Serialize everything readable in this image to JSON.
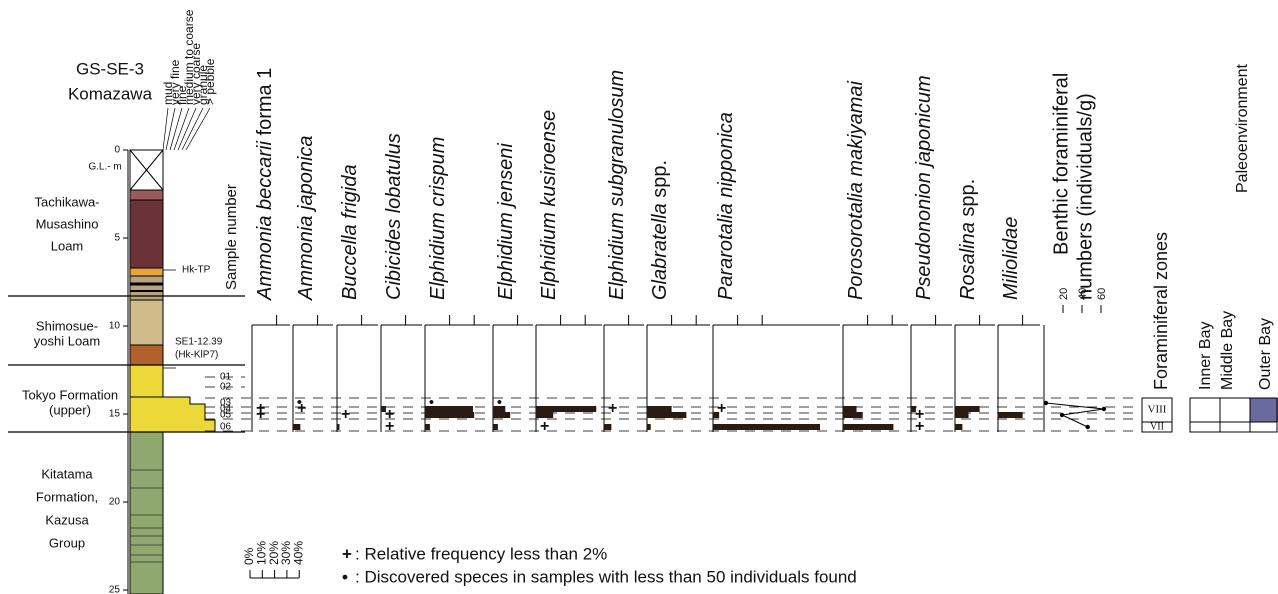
{
  "header": {
    "title": "GS-SE-3",
    "subtitle": "Komazawa",
    "depth_label": "G.L.- m",
    "sample_label": "Sample number"
  },
  "grain_sizes": [
    "mud",
    "very fine",
    "fine",
    "medium to coarse",
    "very coarse",
    "granule",
    "> pebble"
  ],
  "depth_ticks": [
    0,
    5,
    10,
    15,
    20,
    25
  ],
  "units": [
    {
      "lines": [
        "Tachikawa-",
        "Musashino",
        "Loam"
      ]
    },
    {
      "lines": [
        "Shimosue-",
        "yoshi Loam"
      ]
    },
    {
      "lines": [
        "Tokyo Formation",
        "(upper)"
      ]
    },
    {
      "lines": [
        "Kitatama",
        "Formation,",
        "Kazusa",
        "Group"
      ]
    }
  ],
  "tephra": [
    {
      "label": "Hk-TP"
    },
    {
      "label": "SE1-12.39",
      "label2": "(Hk-KlP7)"
    }
  ],
  "samples": [
    "01",
    "02",
    "03",
    "04",
    "05",
    "06"
  ],
  "species": [
    {
      "name": "Ammonia beccarii",
      "suffix": "forma 1",
      "values": [
        null,
        null,
        null,
        null,
        null,
        null
      ],
      "markers": [
        null,
        null,
        null,
        "+",
        "+",
        null
      ]
    },
    {
      "name": "Ammonia japonica",
      "values": [
        null,
        null,
        null,
        null,
        null,
        6
      ],
      "markers": [
        null,
        null,
        "•",
        "+",
        null,
        null
      ]
    },
    {
      "name": "Buccella frigida",
      "values": [
        null,
        null,
        null,
        null,
        null,
        2
      ],
      "markers": [
        null,
        null,
        null,
        null,
        "+",
        null
      ]
    },
    {
      "name": "Cibicides lobatulus",
      "values": [
        null,
        null,
        null,
        4,
        null,
        null
      ],
      "markers": [
        null,
        null,
        null,
        null,
        "+",
        "+"
      ]
    },
    {
      "name": "Elphidium crispum",
      "values": [
        null,
        null,
        null,
        39,
        40,
        4
      ],
      "markers": [
        null,
        null,
        "•",
        null,
        null,
        null
      ]
    },
    {
      "name": "Elphidium jenseni",
      "values": [
        null,
        null,
        null,
        10,
        14,
        4
      ],
      "markers": [
        null,
        null,
        "•",
        null,
        null,
        null
      ]
    },
    {
      "name": "Elphidium kusiroense",
      "values": [
        null,
        null,
        null,
        49,
        14,
        null
      ],
      "markers": [
        null,
        null,
        null,
        null,
        null,
        "+"
      ]
    },
    {
      "name": "Elphidium subgranulosum",
      "values": [
        null,
        null,
        null,
        null,
        null,
        6
      ],
      "markers": [
        null,
        null,
        null,
        "+",
        null,
        null
      ]
    },
    {
      "name": "Glabratella",
      "suffix": "spp.",
      "values": [
        null,
        null,
        null,
        20,
        32,
        3
      ],
      "markers": [
        null,
        null,
        null,
        null,
        null,
        null
      ]
    },
    {
      "name": "Pararotalia nipponica",
      "values": [
        null,
        null,
        null,
        null,
        5,
        87
      ],
      "markers": [
        null,
        null,
        null,
        "+",
        null,
        null
      ]
    },
    {
      "name": "Porosorotalia makiyamai",
      "values": [
        null,
        null,
        null,
        11,
        16,
        41
      ],
      "markers": [
        null,
        null,
        null,
        null,
        null,
        null
      ]
    },
    {
      "name": "Pseudononion japonicum",
      "values": [
        null,
        null,
        null,
        4,
        null,
        null
      ],
      "markers": [
        null,
        null,
        null,
        null,
        "+",
        "+"
      ]
    },
    {
      "name": "Rosalina",
      "suffix": "spp.",
      "values": [
        null,
        null,
        null,
        20,
        11,
        6
      ],
      "markers": [
        null,
        null,
        null,
        null,
        null,
        null
      ]
    },
    {
      "name": "Miliolidae",
      "values": [
        null,
        null,
        null,
        null,
        20,
        null
      ],
      "markers": [
        null,
        null,
        null,
        null,
        null,
        null
      ]
    }
  ],
  "benthic": {
    "title": "Benthic foraminiferal",
    "title2": "numbers (individuals/g)",
    "ticks": [
      20,
      40,
      60
    ],
    "values": [
      null,
      null,
      2,
      63,
      19,
      46
    ]
  },
  "zones": {
    "title": "Foraminiferal zones",
    "labels": [
      "VIII",
      "VII"
    ]
  },
  "paleo": {
    "title": "Paleoenvironment",
    "columns": [
      "Inner Bay",
      "Middle Bay",
      "Outer Bay"
    ]
  },
  "scale": {
    "ticks": [
      {
        "value": 0,
        "label": "0%"
      },
      {
        "value": 10,
        "label": "10%"
      },
      {
        "value": 20,
        "label": "20%"
      },
      {
        "value": 30,
        "label": "30%"
      },
      {
        "value": 40,
        "label": "40%"
      }
    ]
  },
  "legend": [
    {
      "symbol": "+",
      "text": ": Relative frequency less than 2%"
    },
    {
      "symbol": "•",
      "text": ": Discovered speces in samples with less than 50 individuals found"
    }
  ]
}
